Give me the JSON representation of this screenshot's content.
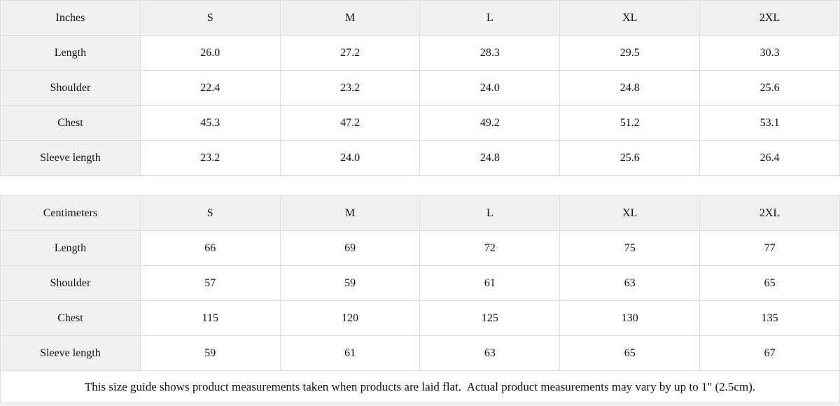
{
  "theme": {
    "header_bg": "#f1f1f1",
    "cell_bg": "#ffffff",
    "border_color": "#dddddd",
    "text_color": "#111111"
  },
  "tables": [
    {
      "unit_label": "Inches",
      "sizes": [
        "S",
        "M",
        "L",
        "XL",
        "2XL"
      ],
      "rows": [
        {
          "label": "Length",
          "values": [
            "26.0",
            "27.2",
            "28.3",
            "29.5",
            "30.3"
          ]
        },
        {
          "label": "Shoulder",
          "values": [
            "22.4",
            "23.2",
            "24.0",
            "24.8",
            "25.6"
          ]
        },
        {
          "label": "Chest",
          "values": [
            "45.3",
            "47.2",
            "49.2",
            "51.2",
            "53.1"
          ]
        },
        {
          "label": "Sleeve length",
          "values": [
            "23.2",
            "24.0",
            "24.8",
            "25.6",
            "26.4"
          ]
        }
      ]
    },
    {
      "unit_label": "Centimeters",
      "sizes": [
        "S",
        "M",
        "L",
        "XL",
        "2XL"
      ],
      "rows": [
        {
          "label": "Length",
          "values": [
            "66",
            "69",
            "72",
            "75",
            "77"
          ]
        },
        {
          "label": "Shoulder",
          "values": [
            "57",
            "59",
            "61",
            "63",
            "65"
          ]
        },
        {
          "label": "Chest",
          "values": [
            "115",
            "120",
            "125",
            "130",
            "135"
          ]
        },
        {
          "label": "Sleeve length",
          "values": [
            "59",
            "61",
            "63",
            "65",
            "67"
          ]
        }
      ]
    }
  ],
  "footer": {
    "note": "This size guide shows product measurements taken when products are laid flat.  Actual product measurements may vary by up to 1\" (2.5cm)."
  }
}
